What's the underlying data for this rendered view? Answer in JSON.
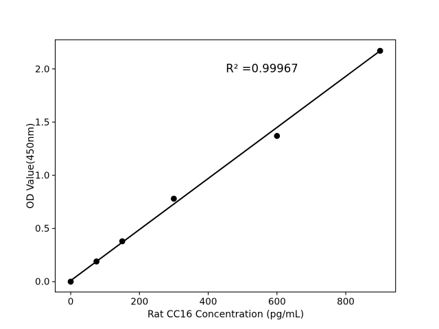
{
  "chart_data": {
    "type": "scatter",
    "title": "",
    "xlabel": "Rat CC16 Concentration (pg/mL)",
    "ylabel": "OD Value(450nm)",
    "annotation": "R² =0.99967",
    "x": [
      0,
      75,
      150,
      300,
      600,
      900
    ],
    "y": [
      0.0,
      0.19,
      0.38,
      0.78,
      1.37,
      2.17
    ],
    "trendline": {
      "x1": 0,
      "y1": 0.01,
      "x2": 900,
      "y2": 2.17
    },
    "xticks": {
      "values": [
        0,
        200,
        400,
        600,
        800
      ],
      "labels": [
        "0",
        "200",
        "400",
        "600",
        "800"
      ]
    },
    "yticks": {
      "values": [
        0.0,
        0.5,
        1.0,
        1.5,
        2.0
      ],
      "labels": [
        "0.0",
        "0.5",
        "1.0",
        "1.5",
        "2.0"
      ]
    },
    "xlim": [
      -45,
      945
    ],
    "ylim": [
      -0.097,
      2.274
    ],
    "grid": false,
    "legend_position": "none",
    "marker_color": "#000000",
    "line_color": "#000000",
    "axis_color": "#000000",
    "background_color": "#ffffff"
  }
}
